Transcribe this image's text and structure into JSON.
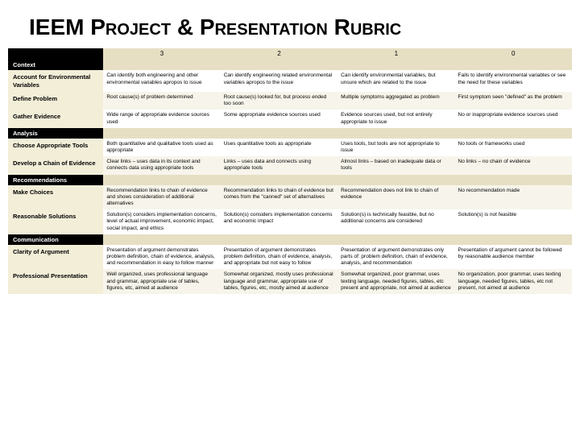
{
  "title": "IEEM Project & Presentation Rubric",
  "scores": [
    "3",
    "2",
    "1",
    "0"
  ],
  "sections": [
    {
      "name": "Context",
      "rows": [
        {
          "label": "Account for Environmental Variables",
          "cells": [
            "Can identify both engineering and other environmental variables apropos to issue",
            "Can identify engineering related environmental variables apropos to the issue",
            "Can identify environmental variables, but unsure which are related to the issue",
            "Fails to identify environmental variables or see the need for these variables"
          ]
        },
        {
          "label": "Define Problem",
          "cells": [
            "Root cause(s) of problem determined",
            "Root cause(s) looked for, but process ended too soon",
            "Multiple symptoms aggregated as problem",
            "First symptom seen \"defined\" as the problem"
          ]
        },
        {
          "label": "Gather Evidence",
          "cells": [
            "Wide range of appropriate evidence sources used",
            "Some appropriate evidence sources used",
            "Evidence sources used, but not entirely appropriate to issue",
            "No or inappropriate evidence sources used"
          ]
        }
      ]
    },
    {
      "name": "Analysis",
      "rows": [
        {
          "label": "Choose Appropriate Tools",
          "cells": [
            "Both quantitative and qualitative tools used as appropriate",
            "Uses quantitative tools as appropriate",
            "Uses tools, but tools are not appropriate to issue",
            "No tools or frameworks used"
          ]
        },
        {
          "label": "Develop a Chain of Evidence",
          "cells": [
            "Clear links – uses data in its context and connects data using appropriate tools",
            "Links – uses data and connects using appropriate tools",
            "Almost links – based on inadequate data or tools",
            "No links – no chain of evidence"
          ]
        }
      ]
    },
    {
      "name": "Recommendations",
      "rows": [
        {
          "label": "Make Choices",
          "cells": [
            "Recommendation links to chain of evidence and shows consideration of additional alternatives",
            "Recommendation links to chain of evidence but comes from the \"canned\" set of alternatives",
            "Recommendation does not link to chain of evidence",
            "No recommendation made"
          ]
        },
        {
          "label": "Reasonable Solutions",
          "cells": [
            "Solution(s) considers implementation concerns, level of actual improvement, economic impact, social impact, and ethics",
            "Solution(s) considers implementation concerns and economic impact",
            "Solution(s) is technically feasible, but no additional concerns are considered",
            "Solution(s) is not feasible"
          ]
        }
      ]
    },
    {
      "name": "Communication",
      "rows": [
        {
          "label": "Clarity of Argument",
          "cells": [
            "Presentation of argument demonstrates problem definition, chain of evidence, analysis, and recommendation in easy to follow manner",
            "Presentation of argument demonstrates problem definition, chain of evidence, analysis, and appropriate but not easy to follow",
            "Presentation of argument demonstrates only parts of: problem definition, chain of evidence, analysis, and recommendation",
            "Presentation of argument cannot be followed by reasonable audience member"
          ]
        },
        {
          "label": "Professional Presentation",
          "cells": [
            "Well organized, uses professional language and grammar, appropriate use of tables, figures, etc, aimed at audience",
            "Somewhat organized, mostly uses professional language and grammar, appropriate use of tables, figures, etc, mostly aimed at audience",
            "Somewhat organized, poor grammar, uses texting language, needed figures, tables, etc present and appropriate, not aimed at audience",
            "No organization, poor grammar, uses texting language, needed figures, tables, etc not present, not aimed at audience"
          ]
        }
      ]
    }
  ]
}
